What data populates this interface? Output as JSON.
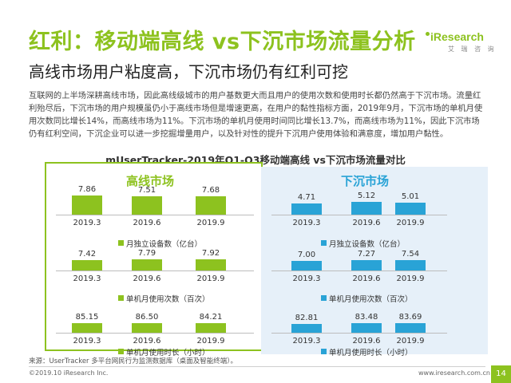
{
  "title": "红利：移动端高线 vs下沉市场流量分析",
  "logo": {
    "text": "iResearch",
    "sub": "艾 瑞 咨 询"
  },
  "subtitle": "高线市场用户粘度高，下沉市场仍有红利可挖",
  "paragraph": "互联网的上半场深耕高线市场，因此高线级城市的用户基数更大而且用户的使用次数和使用时长都仍然高于下沉市场。流量红利殆尽后，下沉市场的用户规模虽仍小于高线市场但是增速更高，在用户的黏性指标方面，2019年9月，下沉市场的单机月使用次数同比增长14%，而高线市场为11%。下沉市场的单机月使用时间同比增长13.7%，而高线市场为11%，因此下沉市场仍有红利空间，下沉企业可以进一步挖掘增量用户，以及针对性的提升下沉用户使用体验和满意度，增加用户黏性。",
  "chart_data": {
    "title": "mUserTracker-2019年Q1-Q3移动端高线 vs下沉市场流量对比",
    "type": "bar",
    "categories": [
      "2019.3",
      "2019.6",
      "2019.9"
    ],
    "groups": [
      {
        "name": "高线市场",
        "color": "#8dc21f",
        "metrics": [
          {
            "name": "月独立设备数（亿台）",
            "values": [
              7.86,
              7.51,
              7.68
            ]
          },
          {
            "name": "单机月使用次数（百次）",
            "values": [
              7.42,
              7.79,
              7.92
            ]
          },
          {
            "name": "单机月使用时长（小时）",
            "values": [
              85.15,
              86.5,
              84.21
            ]
          }
        ]
      },
      {
        "name": "下沉市场",
        "color": "#29a3d6",
        "metrics": [
          {
            "name": "月独立设备数（亿台）",
            "values": [
              4.71,
              5.12,
              5.01
            ]
          },
          {
            "name": "单机月使用次数（百次）",
            "values": [
              7.0,
              7.27,
              7.54
            ]
          },
          {
            "name": "单机月使用时长（小时）",
            "values": [
              82.81,
              83.48,
              83.69
            ]
          }
        ]
      }
    ]
  },
  "source": "来源：UserTracker 多平台网民行为监测数据库（桌面及智能终端）。",
  "copyright": "©2019.10 iResearch Inc.",
  "website": "www.iresearch.com.cn",
  "page_number": "14"
}
